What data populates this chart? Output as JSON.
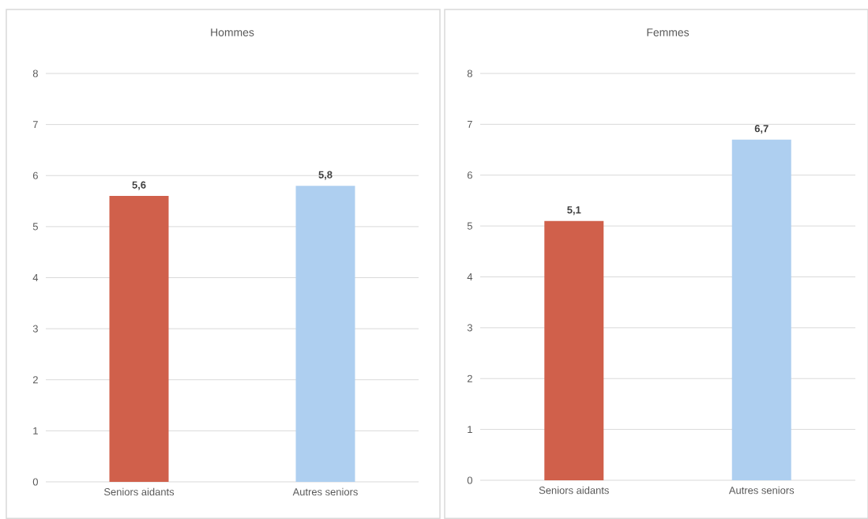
{
  "chart_data": [
    {
      "type": "bar",
      "title": "Hommes",
      "categories": [
        "Seniors aidants",
        "Autres seniors"
      ],
      "values": [
        5.6,
        5.8
      ],
      "colors": [
        "#d0604b",
        "#aecff0"
      ],
      "value_labels": [
        "5,6",
        "5,8"
      ],
      "ylim": [
        0,
        8
      ],
      "yticks": [
        0,
        1,
        2,
        3,
        4,
        5,
        6,
        7,
        8
      ],
      "grid": "y"
    },
    {
      "type": "bar",
      "title": "Femmes",
      "categories": [
        "Seniors aidants",
        "Autres seniors"
      ],
      "values": [
        5.1,
        6.7
      ],
      "colors": [
        "#d0604b",
        "#aecff0"
      ],
      "value_labels": [
        "5,1",
        "6,7"
      ],
      "ylim": [
        0,
        8
      ],
      "yticks": [
        0,
        1,
        2,
        3,
        4,
        5,
        6,
        7,
        8
      ],
      "grid": "y"
    }
  ]
}
